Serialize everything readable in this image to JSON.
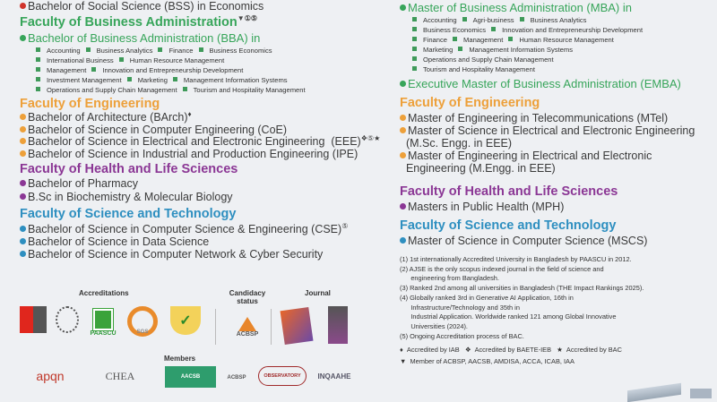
{
  "left": {
    "bss": "Bachelor of Social Science (BSS) in Economics",
    "fba": {
      "heading": "Faculty of Business Administration",
      "marks": "▼①⑤",
      "program": "Bachelor of Business Administration (BBA) in",
      "rows": [
        [
          "Accounting",
          "Business Analytics",
          "Finance",
          "Business Economics"
        ],
        [
          "International Business",
          "Human Resource Management"
        ],
        [
          "Management",
          "Innovation and Entrepreneurship Development"
        ],
        [
          "Investment Management",
          "Marketing",
          "Management Information Systems"
        ],
        [
          "Operations and Supply Chain Management",
          "Tourism and Hospitality Management"
        ]
      ]
    },
    "eng": {
      "heading": "Faculty of Engineering",
      "programs": [
        {
          "text": "Bachelor of Architecture (BArch)",
          "mark": "♦"
        },
        {
          "text": "Bachelor of Science in Computer Engineering (CoE)",
          "mark": ""
        },
        {
          "text": "Bachelor of Science in Electrical and Electronic Engineering  (EEE)",
          "mark": "❖⑤★"
        },
        {
          "text": "Bachelor of Science in Industrial and Production Engineering (IPE)",
          "mark": ""
        }
      ]
    },
    "health": {
      "heading": "Faculty of Health and Life Sciences",
      "programs": [
        "Bachelor of Pharmacy",
        "B.Sc in Biochemistry & Molecular Biology"
      ]
    },
    "sci": {
      "heading": "Faculty of Science and Technology",
      "programs": [
        {
          "text": "Bachelor of Science in Computer Science & Engineering (CSE)",
          "mark": "⑤"
        },
        {
          "text": "Bachelor of Science in Data Science",
          "mark": ""
        },
        {
          "text": "Bachelor of Science in Computer Network & Cyber Security",
          "mark": ""
        }
      ]
    }
  },
  "right": {
    "mba": {
      "program": "Master of Business Administration (MBA) in",
      "rows": [
        [
          "Accounting",
          "Agri-business",
          "Business Analytics"
        ],
        [
          "Business Economics",
          "Innovation and Entrepreneurship Development"
        ],
        [
          "Finance",
          "Management",
          "Human Resource Management"
        ],
        [
          "Marketing",
          "Management Information Systems"
        ],
        [
          "Operations and Supply Chain Management"
        ],
        [
          "Tourism and Hospitality Management"
        ]
      ]
    },
    "emba": "Executive Master of Business Administration (EMBA)",
    "eng": {
      "heading": "Faculty of Engineering",
      "programs": [
        "Master of Engineering in Telecommunications (MTel)",
        "Master of Science in Electrical and Electronic Engineering\n(M.Sc. Engg. in EEE)",
        "Master of Engineering in Electrical and Electronic\nEngineering (M.Engg. in EEE)"
      ]
    },
    "health": {
      "heading": "Faculty of Health and Life Sciences",
      "programs": [
        "Masters in Public Health (MPH)"
      ]
    },
    "sci": {
      "heading": "Faculty of Science and Technology",
      "programs": [
        "Master of Science in Computer Science (MSCS)"
      ]
    }
  },
  "footnotes": [
    "(1) 1st internationally Accredited University in Bangladesh by PAASCU in 2012.",
    "(2) AJSE is the only scopus indexed journal in the field of science and",
    "      engineering from Bangladesh.",
    "(3) Ranked 2nd among all universities in Bangladesh (THE Impact Rankings 2025).",
    "(4) Globally ranked 3rd in Generative AI Application, 16th in",
    "      Infrastructure/Technology and 35th in",
    "      Industrial Application. Worldwide ranked 121 among Global Innovative",
    "      Universities (2024).",
    "(5) Ongoing Accreditation process of BAC."
  ],
  "legend": {
    "iab": "Accredited by IAB",
    "baete": "Accredited by BAETE-IEB",
    "bac": "Accredited by BAC",
    "member": "Member of ACBSP, AACSB, AMDISA, ACCA, ICAB, IAA"
  },
  "logos": {
    "accreditations_label": "Accreditations",
    "candidacy_label": "Candidacy status",
    "journal_label": "Journal",
    "members_label": "Members",
    "accreditations": [
      "PAASCU",
      "SGS"
    ],
    "candidacy": "ACBSP",
    "members": [
      "apqn",
      "CHEA",
      "AACSB",
      "ACBSP",
      "OBSERVATORY",
      "INQAAHE"
    ]
  },
  "colors": {
    "business": "#37a55a",
    "engineering": "#eda03a",
    "health": "#8b3795",
    "science": "#2e8fc0",
    "arts": "#d0342c"
  }
}
